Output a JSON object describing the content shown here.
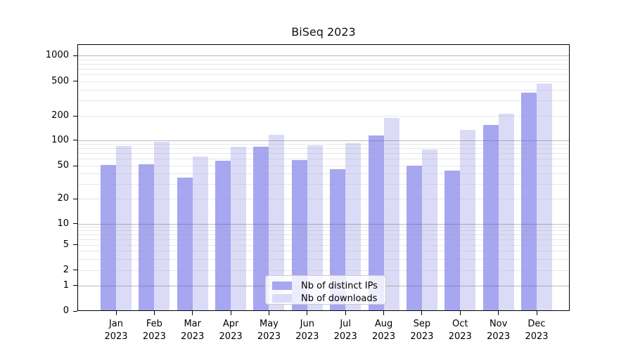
{
  "title": "BiSeq 2023",
  "chart_data": {
    "type": "bar",
    "title": "BiSeq 2023",
    "yscale": "symlog",
    "grid": true,
    "legend_position": "lower-center",
    "x_tick_year": "2023",
    "categories": [
      "Jan",
      "Feb",
      "Mar",
      "Apr",
      "May",
      "Jun",
      "Jul",
      "Aug",
      "Sep",
      "Oct",
      "Nov",
      "Dec"
    ],
    "series": [
      {
        "name": "Nb of distinct IPs",
        "color": "#a6a6f1",
        "values": [
          51,
          52,
          36,
          57,
          84,
          58,
          45,
          115,
          50,
          44,
          155,
          370
        ]
      },
      {
        "name": "Nb of downloads",
        "color": "#dbdbf7",
        "values": [
          85,
          95,
          64,
          83,
          116,
          87,
          91,
          190,
          77,
          134,
          210,
          465
        ]
      }
    ],
    "yticks": [
      0,
      1,
      2,
      5,
      10,
      20,
      50,
      100,
      200,
      500,
      1000
    ],
    "ylim": [
      0,
      1400
    ]
  }
}
